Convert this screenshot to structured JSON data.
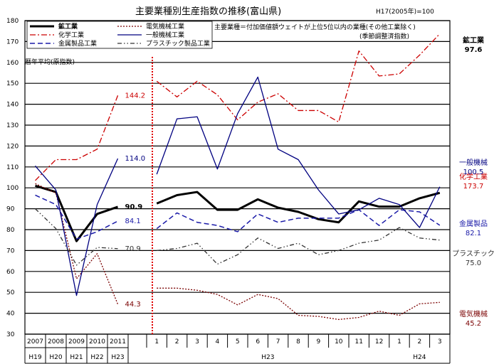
{
  "chart_data": {
    "type": "line",
    "title": "主要業種別生産指数の推移(富山県)",
    "base_note": "H17(2005年)=100",
    "note_line1": "主要業種＝付加価値額ウェイトが上位5位以内の業種(その他工業除く)",
    "note_line2": "(季節調整済指数)",
    "annual_section_label": "暦年平均(原指数)",
    "ylim": [
      30,
      180
    ],
    "y_ticks": [
      30,
      40,
      50,
      60,
      70,
      80,
      90,
      100,
      110,
      120,
      130,
      140,
      150,
      160,
      170,
      180
    ],
    "annual_x": [
      "2007",
      "2008",
      "2009",
      "2010",
      "2011"
    ],
    "annual_era": [
      "H19",
      "H20",
      "H21",
      "H22",
      "H23"
    ],
    "monthly_x": [
      "1",
      "2",
      "3",
      "4",
      "5",
      "6",
      "7",
      "8",
      "9",
      "10",
      "11",
      "12",
      "1",
      "2",
      "3"
    ],
    "monthly_year_labels": [
      {
        "label": "H23",
        "from": 0,
        "to": 11
      },
      {
        "label": "H24",
        "from": 12,
        "to": 14
      }
    ],
    "series": [
      {
        "name": "鉱工業",
        "color": "#000000",
        "dash": "solid",
        "width": 3,
        "annual": [
          101.0,
          98.0,
          74.5,
          87.5,
          90.9
        ],
        "monthly": [
          92.5,
          96.5,
          98.0,
          89.5,
          89.5,
          94.5,
          90.5,
          88.5,
          85.0,
          83.5,
          93.5,
          91.0,
          91.0,
          95.0,
          97.6
        ],
        "end_annual_label": "90.9",
        "end_monthly_label_lines": [
          "鉱工業",
          "97.6"
        ],
        "end_label_color": "#000000"
      },
      {
        "name": "化学工業",
        "color": "#cc0000",
        "dash": "dashdot",
        "width": 1.3,
        "annual": [
          103.5,
          113.5,
          113.5,
          118.5,
          144.2
        ],
        "monthly": [
          151.0,
          143.5,
          151.0,
          144.5,
          132.5,
          141.0,
          145.0,
          137.0,
          137.0,
          131.5,
          165.5,
          153.5,
          154.5,
          163.5,
          173.7
        ],
        "end_annual_label": "144.2",
        "end_monthly_label_lines": [
          "化学工業",
          "173.7"
        ],
        "end_label_color": "#cc0000"
      },
      {
        "name": "金属製品工業",
        "color": "#1a1aa8",
        "dash": "dashed",
        "width": 1.5,
        "annual": [
          96.5,
          92.0,
          75.5,
          79.0,
          84.1
        ],
        "monthly": [
          80.5,
          88.0,
          83.5,
          82.0,
          79.0,
          87.5,
          83.5,
          85.5,
          85.5,
          85.5,
          89.5,
          82.0,
          89.5,
          88.5,
          82.1
        ],
        "end_annual_label": "84.1",
        "end_monthly_label_lines": [
          "金属製品",
          "82.1"
        ],
        "end_label_color": "#1a1aa8"
      },
      {
        "name": "電気機械工業",
        "color": "#7a0000",
        "dash": "dotted",
        "width": 1.3,
        "annual": [
          102.0,
          97.5,
          56.5,
          68.5,
          44.3
        ],
        "monthly": [
          52.0,
          52.0,
          51.0,
          49.0,
          44.0,
          49.0,
          47.0,
          39.0,
          38.5,
          37.0,
          38.0,
          41.0,
          39.0,
          44.5,
          45.2
        ],
        "end_annual_label": "44.3",
        "end_monthly_label_lines": [
          "電気機械",
          "45.2"
        ],
        "end_label_color": "#7a0000"
      },
      {
        "name": "一般機械工業",
        "color": "#000080",
        "dash": "solid",
        "width": 1.3,
        "annual": [
          110.5,
          99.0,
          48.5,
          92.0,
          114.0
        ],
        "monthly": [
          106.5,
          133.0,
          134.0,
          109.0,
          135.5,
          153.0,
          118.5,
          113.5,
          99.0,
          87.5,
          89.5,
          95.0,
          92.0,
          81.0,
          100.5
        ],
        "end_annual_label": "114.0",
        "end_monthly_label_lines": [
          "一般機械",
          "100.5"
        ],
        "end_label_color": "#000080"
      },
      {
        "name": "プラスチック製品工業",
        "color": "#333333",
        "dash": "dashdotdot",
        "width": 1.3,
        "annual": [
          90.0,
          80.5,
          63.0,
          71.5,
          70.9
        ],
        "monthly": [
          70.0,
          71.0,
          73.5,
          63.5,
          68.0,
          76.0,
          71.0,
          73.5,
          68.0,
          70.0,
          73.5,
          75.0,
          81.0,
          76.0,
          75.0
        ],
        "end_annual_label": "70.9",
        "end_monthly_label_lines": [
          "プラスチック",
          "75.0"
        ],
        "end_label_color": "#333333"
      }
    ],
    "legend_order": [
      0,
      3,
      1,
      4,
      2,
      5
    ],
    "grid": true
  }
}
